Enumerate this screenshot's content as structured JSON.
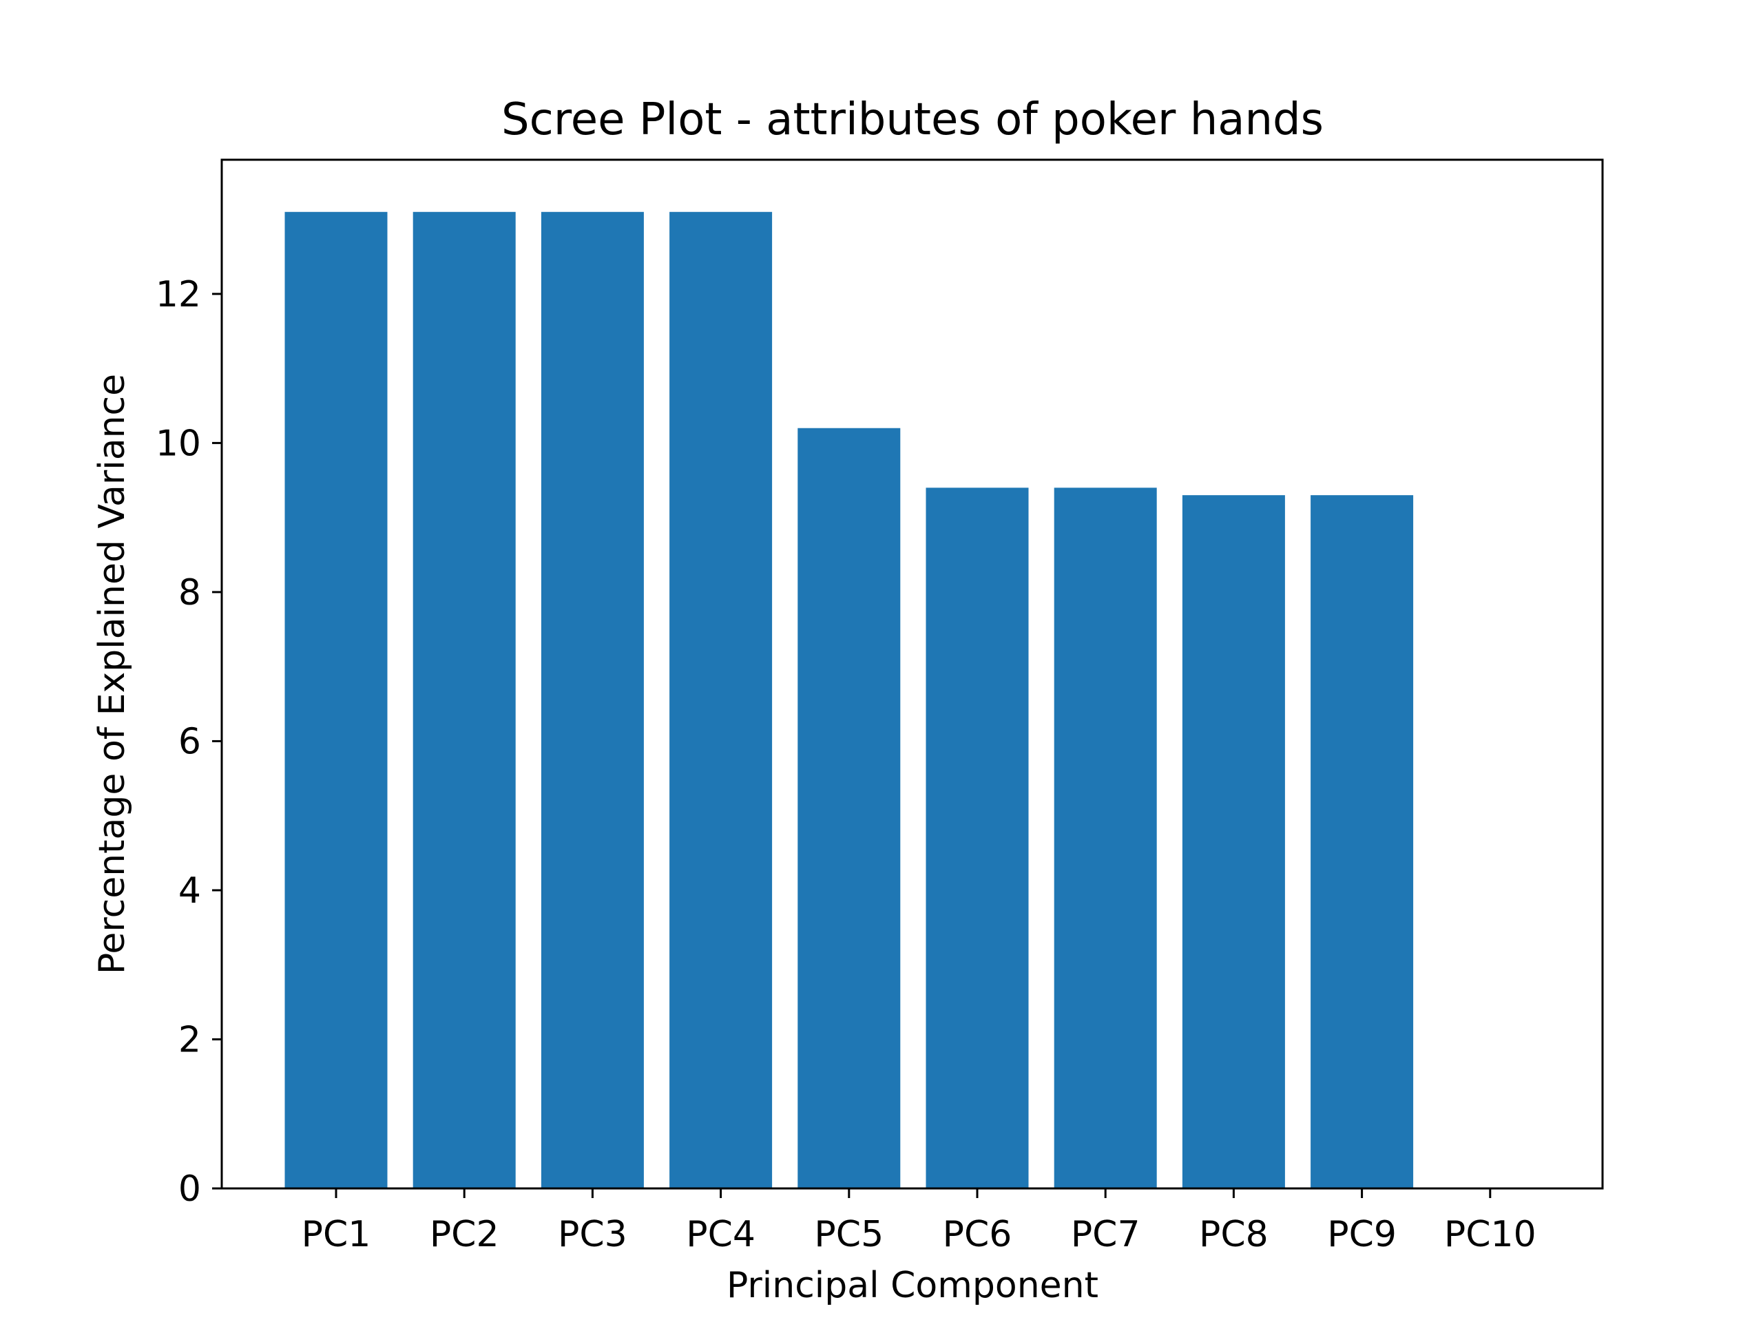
{
  "chart_data": {
    "type": "bar",
    "title": "Scree Plot - attributes of poker hands",
    "xlabel": "Principal Component",
    "ylabel": "Percentage of Explained Variance",
    "categories": [
      "PC1",
      "PC2",
      "PC3",
      "PC4",
      "PC5",
      "PC6",
      "PC7",
      "PC8",
      "PC9",
      "PC10"
    ],
    "values": [
      13.1,
      13.1,
      13.1,
      13.1,
      10.2,
      9.4,
      9.4,
      9.3,
      9.3,
      0.0
    ],
    "ylim": [
      0,
      13.8
    ],
    "yticks": [
      0,
      2,
      4,
      6,
      8,
      10,
      12
    ],
    "grid": false,
    "colors": {
      "bar": "#1f77b4",
      "axes": "#000000",
      "background": "#ffffff"
    }
  }
}
